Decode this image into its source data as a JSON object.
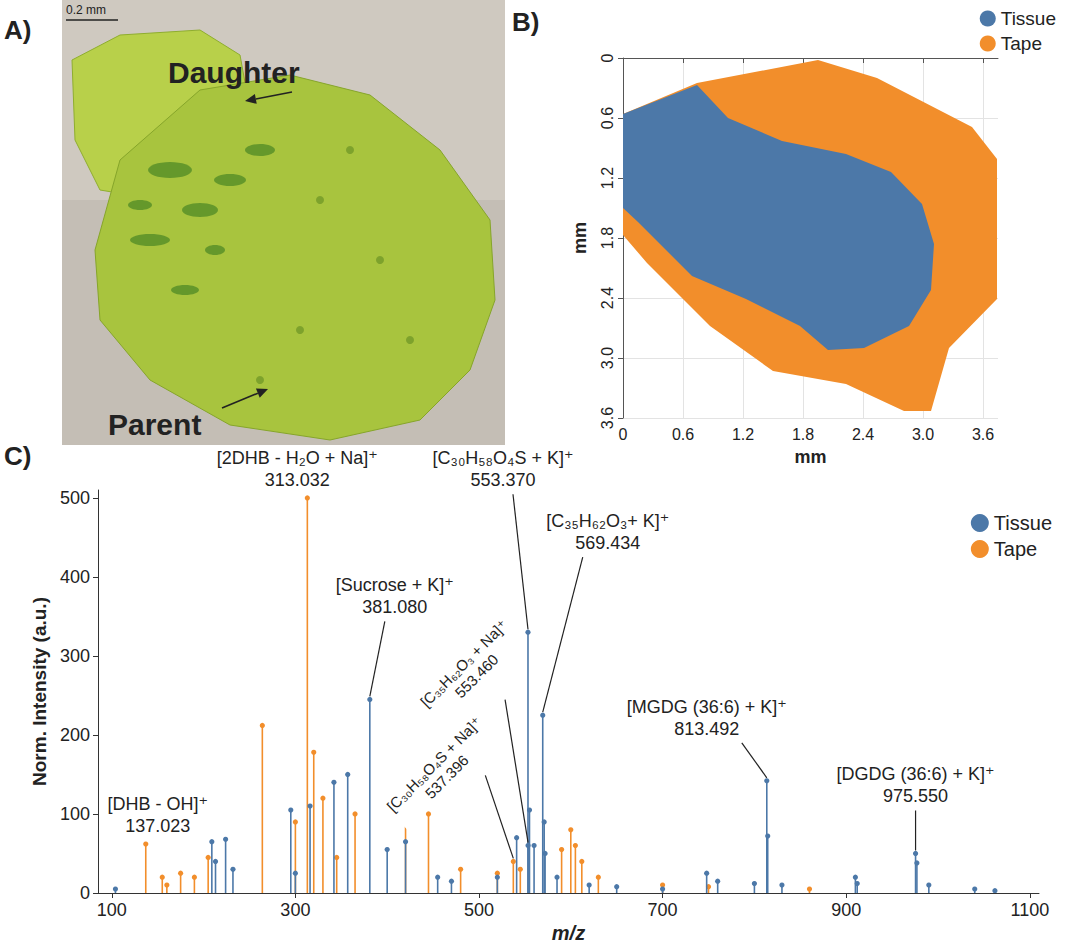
{
  "chart_data": [
    {
      "type": "image",
      "panel": "A)",
      "scale_bar": "0.2 mm",
      "labels": [
        "Daughter",
        "Parent"
      ]
    },
    {
      "type": "region_map",
      "panel": "B)",
      "xlabel": "mm",
      "ylabel": "mm",
      "xlim": [
        0,
        3.75
      ],
      "ylim": [
        0,
        3.6
      ],
      "xticks": [
        0,
        0.6,
        1.2,
        1.8,
        2.4,
        {
          "value": 3,
          "label": "3.0"
        },
        3.6
      ],
      "yticks": [
        0,
        0.6,
        1.2,
        1.8,
        2.4,
        {
          "value": 3,
          "label": "3.0"
        },
        3.6
      ],
      "grid": true,
      "legend": "top-right",
      "series": [
        {
          "name": "Tissue",
          "color": "#4c78a8",
          "polygon": [
            [
              0,
              0.56
            ],
            [
              0.74,
              0.27
            ],
            [
              1.05,
              0.6
            ],
            [
              1.59,
              0.83
            ],
            [
              2.23,
              0.96
            ],
            [
              2.68,
              1.14
            ],
            [
              2.99,
              1.46
            ],
            [
              3.11,
              1.86
            ],
            [
              3.08,
              2.32
            ],
            [
              2.86,
              2.68
            ],
            [
              2.41,
              2.9
            ],
            [
              2.05,
              2.92
            ],
            [
              1.77,
              2.68
            ],
            [
              1.23,
              2.41
            ],
            [
              0.69,
              2.18
            ],
            [
              0.15,
              1.64
            ],
            [
              0,
              1.5
            ]
          ]
        },
        {
          "name": "Tape",
          "color": "#f28e2b",
          "polygon": [
            [
              0,
              0.56
            ],
            [
              0.74,
              0.25
            ],
            [
              1.95,
              0.02
            ],
            [
              2.54,
              0.2
            ],
            [
              3.49,
              0.69
            ],
            [
              3.74,
              1.01
            ],
            [
              3.74,
              2.41
            ],
            [
              3.26,
              2.9
            ],
            [
              3.08,
              3.53
            ],
            [
              2.81,
              3.53
            ],
            [
              2.23,
              3.26
            ],
            [
              1.5,
              3.13
            ],
            [
              0.87,
              2.68
            ],
            [
              0.24,
              2.05
            ],
            [
              0,
              1.77
            ]
          ]
        }
      ]
    },
    {
      "type": "stem",
      "panel": "C)",
      "xlabel": "m/z",
      "ylabel": "Norm. Intensity (a.u.)",
      "xlim": [
        85,
        1110
      ],
      "ylim": [
        0,
        510
      ],
      "xticks": [
        100,
        300,
        500,
        700,
        900,
        1100
      ],
      "yticks": [
        0,
        100,
        200,
        300,
        400,
        500
      ],
      "grid": false,
      "legend": "top-right",
      "series": [
        {
          "name": "Tissue",
          "color": "#4c78a8",
          "x": [
            104,
            209,
            213,
            224,
            232,
            295,
            300,
            316,
            342,
            357,
            381.08,
            400,
            420,
            455,
            470,
            520,
            541,
            553.37,
            553.46,
            555,
            560,
            569.434,
            571,
            572,
            585,
            620,
            650,
            700,
            748,
            760,
            800,
            813.492,
            814.5,
            830,
            910,
            912,
            975.55,
            977,
            990,
            1040,
            1062
          ],
          "values": [
            5,
            65,
            40,
            68,
            30,
            105,
            25,
            110,
            140,
            150,
            245,
            55,
            65,
            20,
            15,
            20,
            70,
            330,
            60,
            105,
            60,
            225,
            90,
            50,
            20,
            10,
            8,
            5,
            25,
            15,
            12,
            142,
            72,
            10,
            20,
            12,
            50,
            38,
            10,
            5,
            3
          ]
        },
        {
          "name": "Tape",
          "color": "#f28e2b",
          "x": [
            137.023,
            155,
            160,
            175,
            190,
            205,
            264,
            300,
            313.032,
            320,
            330,
            345,
            365,
            420,
            445,
            480,
            520,
            537.396,
            545,
            590,
            600,
            605,
            612,
            630,
            700,
            750,
            860
          ],
          "values": [
            62,
            20,
            10,
            25,
            20,
            45,
            212,
            90,
            500,
            178,
            120,
            45,
            100,
            105,
            100,
            30,
            25,
            40,
            30,
            55,
            80,
            60,
            40,
            20,
            10,
            8,
            5
          ]
        }
      ],
      "annotations": [
        {
          "series": "Tape",
          "x": 137.023,
          "text": [
            "[DHB - OH]⁺",
            "137.023"
          ]
        },
        {
          "series": "Tape",
          "x": 313.032,
          "text": [
            "[2DHB - H₂O + Na]⁺",
            "313.032"
          ]
        },
        {
          "series": "Tissue",
          "x": 381.08,
          "text": [
            "[Sucrose + K]⁺",
            "381.080"
          ]
        },
        {
          "series": "Tissue",
          "x": 553.37,
          "text": [
            "[C₃₀H₅₈O₄S + K]⁺",
            "553.370"
          ]
        },
        {
          "series": "Tissue",
          "x": 569.434,
          "text": [
            "[C₃₅H₆₂O₃+ K]⁺",
            "569.434"
          ]
        },
        {
          "series": "Tissue",
          "x": 553.46,
          "text": [
            "[C₃₅H₆₂O₃ + Na]⁺",
            "553.460"
          ]
        },
        {
          "series": "Tape",
          "x": 537.396,
          "text": [
            "[C₃₀H₅₈O₄S + Na]⁺",
            "537.396"
          ]
        },
        {
          "series": "Tissue",
          "x": 813.492,
          "text": [
            "[MGDG (36:6) + K]⁺",
            "813.492"
          ]
        },
        {
          "series": "Tissue",
          "x": 975.55,
          "text": [
            "[DGDG (36:6) + K]⁺",
            "975.550"
          ]
        }
      ]
    }
  ]
}
